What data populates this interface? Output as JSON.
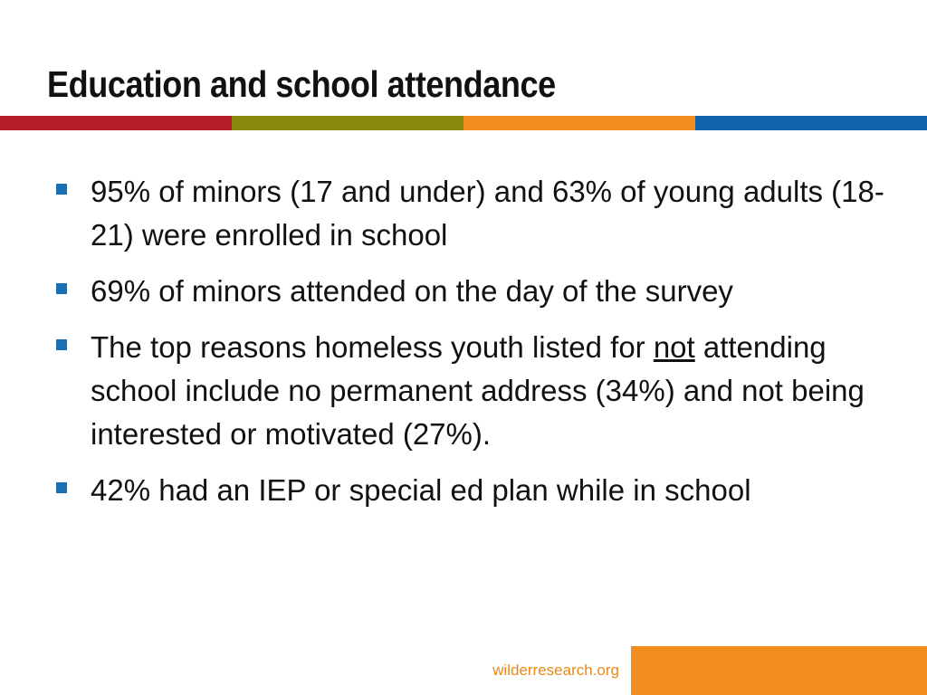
{
  "slide": {
    "title": "Education and school attendance",
    "band_colors": [
      "#b81d2b",
      "#8a8a0f",
      "#f18e1f",
      "#0f63ab"
    ],
    "bullet_color": "#1a6fb5",
    "bullets": [
      {
        "text": "95% of minors (17 and under) and 63% of young adults (18-21) were enrolled in school"
      },
      {
        "text": "69% of minors attended on the day of the survey"
      },
      {
        "text_before": "The top reasons homeless youth listed for ",
        "underlined": "not",
        "text_after": " attending school include no permanent address (34%) and not being interested or motivated (27%)."
      },
      {
        "text": "42% had an IEP or special ed plan while in school"
      }
    ],
    "footer": {
      "url": "wilderresearch.org",
      "url_color": "#e8891c",
      "block_color": "#f18e1f"
    }
  }
}
